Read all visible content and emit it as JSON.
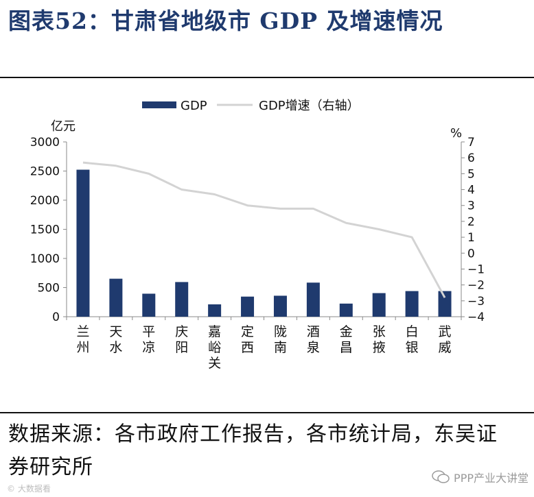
{
  "title": "图表52：甘肃省地级市 GDP 及增速情况",
  "source_text": "数据来源：各市政府工作报告，各市统计局，东吴证券研究所",
  "watermark_left": "© 大数据看",
  "watermark_right": "PPP产业大讲堂",
  "colors": {
    "bar": "#1f3a6e",
    "line": "#d3d3d3",
    "title": "#1f3a6e"
  },
  "chart_data": {
    "type": "bar+line",
    "title": "甘肃省地级市 GDP 及增速情况",
    "categories": [
      [
        "兰",
        "州"
      ],
      [
        "天",
        "水"
      ],
      [
        "平",
        "凉"
      ],
      [
        "庆",
        "阳"
      ],
      [
        "嘉",
        "峪",
        "关"
      ],
      [
        "定",
        "西"
      ],
      [
        "陇",
        "南"
      ],
      [
        "酒",
        "泉"
      ],
      [
        "金",
        "昌"
      ],
      [
        "张",
        "掖"
      ],
      [
        "白",
        "银"
      ],
      [
        "武",
        "威"
      ]
    ],
    "series": [
      {
        "name": "GDP",
        "type": "bar",
        "axis": "left",
        "values": [
          2523,
          652,
          395,
          595,
          212,
          345,
          360,
          585,
          225,
          405,
          440,
          440
        ]
      },
      {
        "name": "GDP增速（右轴）",
        "type": "line",
        "axis": "right",
        "values": [
          5.7,
          5.5,
          5.0,
          4.0,
          3.7,
          3.0,
          2.8,
          2.8,
          1.9,
          1.5,
          1.0,
          -2.8
        ]
      }
    ],
    "left_axis": {
      "label": "亿元",
      "range": [
        0,
        3000
      ],
      "ticks": [
        "0",
        "500",
        "1000",
        "1500",
        "2000",
        "2500",
        "3000"
      ]
    },
    "right_axis": {
      "label": "%",
      "range": [
        -4,
        7
      ],
      "ticks": [
        "−4",
        "−3",
        "−2",
        "−1",
        "0",
        "1",
        "2",
        "3",
        "4",
        "5",
        "6",
        "7"
      ]
    },
    "legend_position": "top-center",
    "grid": false
  }
}
